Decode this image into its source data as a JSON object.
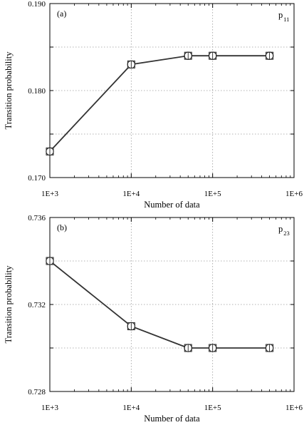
{
  "chart_data": [
    {
      "type": "line",
      "panel_label": "(a)",
      "x_scale": "log",
      "x": [
        1000,
        10000,
        50000,
        100000,
        500000
      ],
      "xlim": [
        1000,
        1000000
      ],
      "xticks": [
        1000,
        10000,
        100000,
        1000000
      ],
      "xtick_labels": [
        "1E+3",
        "1E+4",
        "1E+5",
        "1E+6"
      ],
      "xlabel": "Number of data",
      "ylabel": "Transition probability",
      "ylim": [
        0.17,
        0.19
      ],
      "yticks": [
        0.17,
        0.175,
        0.18,
        0.185,
        0.19
      ],
      "ytick_labels": [
        "0.170",
        "",
        "0.180",
        "",
        "0.190"
      ],
      "grid": true,
      "series": [
        {
          "symbol": "p",
          "subscript": "11",
          "marker": "circle-square",
          "values": [
            0.173,
            0.183,
            0.184,
            0.184,
            0.184
          ]
        }
      ]
    },
    {
      "type": "line",
      "panel_label": "(b)",
      "x_scale": "log",
      "x": [
        1000,
        10000,
        50000,
        100000,
        500000
      ],
      "xlim": [
        1000,
        1000000
      ],
      "xticks": [
        1000,
        10000,
        100000,
        1000000
      ],
      "xtick_labels": [
        "1E+3",
        "1E+4",
        "1E+5",
        "1E+6"
      ],
      "xlabel": "Number of data",
      "ylabel": "Transition probability",
      "ylim": [
        0.728,
        0.736
      ],
      "yticks": [
        0.728,
        0.73,
        0.732,
        0.734,
        0.736
      ],
      "ytick_labels": [
        "0.728",
        "",
        "0.732",
        "",
        "0.736"
      ],
      "grid": true,
      "series": [
        {
          "symbol": "p",
          "subscript": "23",
          "marker": "circle-square",
          "values": [
            0.734,
            0.731,
            0.73,
            0.73,
            0.73
          ]
        }
      ]
    }
  ]
}
